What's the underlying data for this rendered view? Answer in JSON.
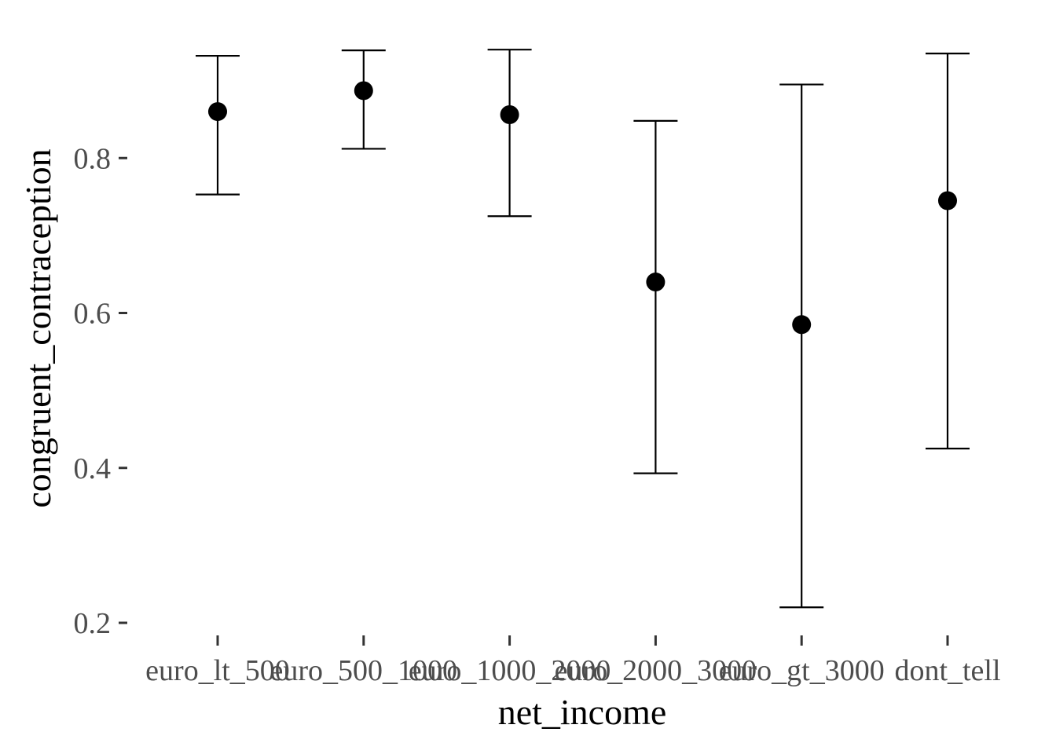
{
  "chart_data": {
    "type": "scatter",
    "subtype": "point-with-errorbars",
    "xlabel": "net_income",
    "ylabel": "congruent_contraception",
    "categories": [
      "euro_lt_500",
      "euro_500_1000",
      "euro_1000_2000",
      "euro_2000_3000",
      "euro_gt_3000",
      "dont_tell"
    ],
    "values": [
      0.86,
      0.887,
      0.856,
      0.64,
      0.585,
      0.745
    ],
    "lower": [
      0.753,
      0.812,
      0.725,
      0.393,
      0.22,
      0.425
    ],
    "upper": [
      0.932,
      0.939,
      0.94,
      0.848,
      0.895,
      0.935
    ],
    "y_ticks": [
      0.2,
      0.4,
      0.6,
      0.8
    ],
    "y_tick_labels": [
      "0.2",
      "0.4",
      "0.6",
      "0.8"
    ],
    "ylim": [
      0.18,
      0.96
    ],
    "grid": false,
    "legend": "none",
    "colors": {
      "point": "#000000",
      "errorbar": "#000000",
      "tick_label": "#4d4d4d",
      "axis_title": "#000000",
      "tick": "#333333"
    }
  }
}
